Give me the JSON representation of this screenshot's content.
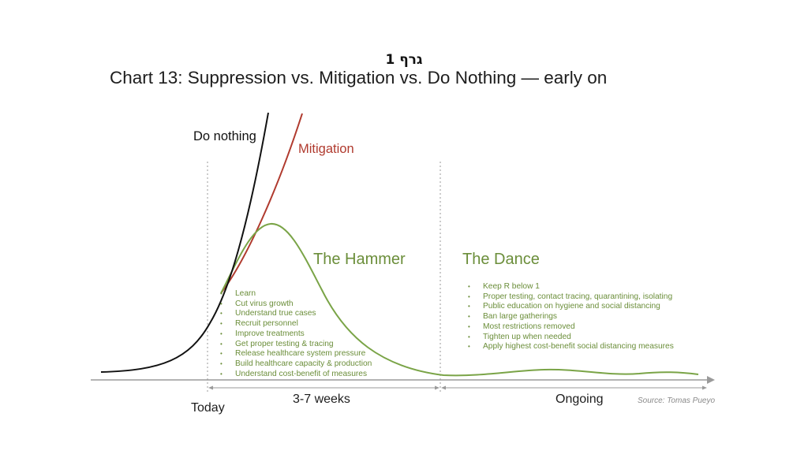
{
  "header": {
    "hebrew_label": "גרף 1",
    "title": "Chart 13: Suppression vs. Mitigation vs. Do Nothing — early on"
  },
  "chart_data": {
    "type": "line",
    "title": "Chart 13: Suppression vs. Mitigation vs. Do Nothing — early on",
    "xlabel": "",
    "ylabel": "",
    "grid": false,
    "series": [
      {
        "name": "Do nothing",
        "color": "#111111",
        "shape": "exponential growth, rising steeply"
      },
      {
        "name": "Mitigation",
        "color": "#b03a2e",
        "shape": "slower exponential growth"
      },
      {
        "name": "The Hammer",
        "color": "#7aa447",
        "shape": "sharp peak after today, then decline"
      },
      {
        "name": "The Dance",
        "color": "#7aa447",
        "shape": "low, gently oscillating plateau"
      }
    ],
    "x_sections": [
      {
        "label": "Today"
      },
      {
        "label": "3-7 weeks"
      },
      {
        "label": "Ongoing"
      }
    ],
    "phases": {
      "hammer": {
        "title": "The Hammer",
        "items": [
          "Learn",
          "Cut virus growth",
          "Understand true cases",
          "Recruit personnel",
          "Improve treatments",
          "Get proper testing & tracing",
          "Release healthcare system pressure",
          "Build healthcare capacity & production",
          "Understand cost-benefit of measures"
        ]
      },
      "dance": {
        "title": "The Dance",
        "items": [
          "Keep R below 1",
          "Proper testing, contact tracing, quarantining, isolating",
          "Public education on hygiene and social distancing",
          "Ban large gatherings",
          "Most restrictions removed",
          "Tighten up when needed",
          "Apply highest cost-benefit social distancing measures"
        ]
      }
    },
    "source": "Source: Tomas Pueyo"
  },
  "colors": {
    "axis": "#9a9a9a",
    "divider": "#9a9a9a",
    "do_nothing": "#111111",
    "mitigation": "#b03a2e",
    "suppression": "#7aa447",
    "bullet_text": "#6b8e3a"
  }
}
